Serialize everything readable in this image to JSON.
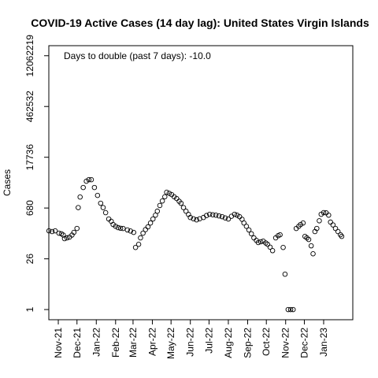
{
  "chart_data": {
    "type": "scatter",
    "title": "COVID-19 Active Cases (14 day lag): United States Virgin Islands",
    "y_label": "Cases",
    "annotation": "Days to double (past 7 days): -10.0",
    "log_y": true,
    "color": "#000000",
    "x": [
      16,
      21,
      26,
      32,
      36,
      39,
      41,
      45,
      49,
      53,
      56,
      61,
      63,
      66,
      71,
      76,
      80,
      84,
      89,
      94,
      99,
      103,
      107,
      112,
      116,
      119,
      123,
      127,
      131,
      135,
      142,
      147,
      152,
      155,
      160,
      163,
      167,
      171,
      175,
      179,
      183,
      187,
      190,
      194,
      198,
      202,
      205,
      209,
      213,
      217,
      221,
      225,
      228,
      232,
      236,
      240,
      243,
      248,
      253,
      258,
      264,
      269,
      274,
      279,
      284,
      289,
      294,
      299,
      304,
      309,
      314,
      318,
      322,
      326,
      329,
      333,
      337,
      341,
      345,
      349,
      352,
      356,
      360,
      364,
      367,
      371,
      375,
      380,
      384,
      387,
      392,
      395,
      400,
      404,
      408,
      413,
      417,
      420,
      424,
      427,
      430,
      433,
      437,
      440,
      443,
      446,
      450,
      453,
      457,
      461,
      465,
      468,
      472,
      476,
      480,
      484,
      486
    ],
    "values": [
      157,
      150,
      157,
      135,
      130,
      120,
      95,
      100,
      105,
      120,
      142,
      183,
      700,
      1380,
      2540,
      3800,
      4200,
      4200,
      2540,
      1530,
      925,
      700,
      505,
      336,
      290,
      236,
      210,
      193,
      185,
      183,
      166,
      155,
      142,
      54,
      66,
      100,
      135,
      170,
      203,
      260,
      336,
      430,
      555,
      800,
      1070,
      1400,
      1870,
      1750,
      1610,
      1400,
      1250,
      1050,
      925,
      700,
      555,
      450,
      370,
      340,
      318,
      340,
      370,
      420,
      455,
      440,
      430,
      410,
      390,
      360,
      336,
      400,
      455,
      430,
      390,
      330,
      260,
      210,
      166,
      130,
      100,
      85,
      74,
      78,
      81,
      72,
      66,
      55,
      44,
      100,
      115,
      122,
      54,
      9.7,
      1,
      1,
      1,
      183,
      210,
      236,
      260,
      110,
      100,
      90,
      60,
      36,
      150,
      183,
      300,
      455,
      505,
      500,
      430,
      275,
      230,
      183,
      150,
      122,
      110
    ],
    "xlim": [
      15.8,
      503.8
    ],
    "ylim": [
      0.52,
      23000000
    ],
    "xticks": [
      {
        "value": 31,
        "label": "Nov-21"
      },
      {
        "value": 61,
        "label": "Dec-21"
      },
      {
        "value": 92,
        "label": "Jan-22"
      },
      {
        "value": 123,
        "label": "Feb-22"
      },
      {
        "value": 151,
        "label": "Mar-22"
      },
      {
        "value": 182,
        "label": "Apr-22"
      },
      {
        "value": 212,
        "label": "May-22"
      },
      {
        "value": 243,
        "label": "Jun-22"
      },
      {
        "value": 273,
        "label": "Jul-22"
      },
      {
        "value": 304,
        "label": "Aug-22"
      },
      {
        "value": 335,
        "label": "Sep-22"
      },
      {
        "value": 365,
        "label": "Oct-22"
      },
      {
        "value": 396,
        "label": "Nov-22"
      },
      {
        "value": 426,
        "label": "Dec-22"
      },
      {
        "value": 457,
        "label": "Jan-23"
      }
    ],
    "yticks": [
      1,
      26,
      680,
      17736,
      462532,
      12062219
    ]
  }
}
